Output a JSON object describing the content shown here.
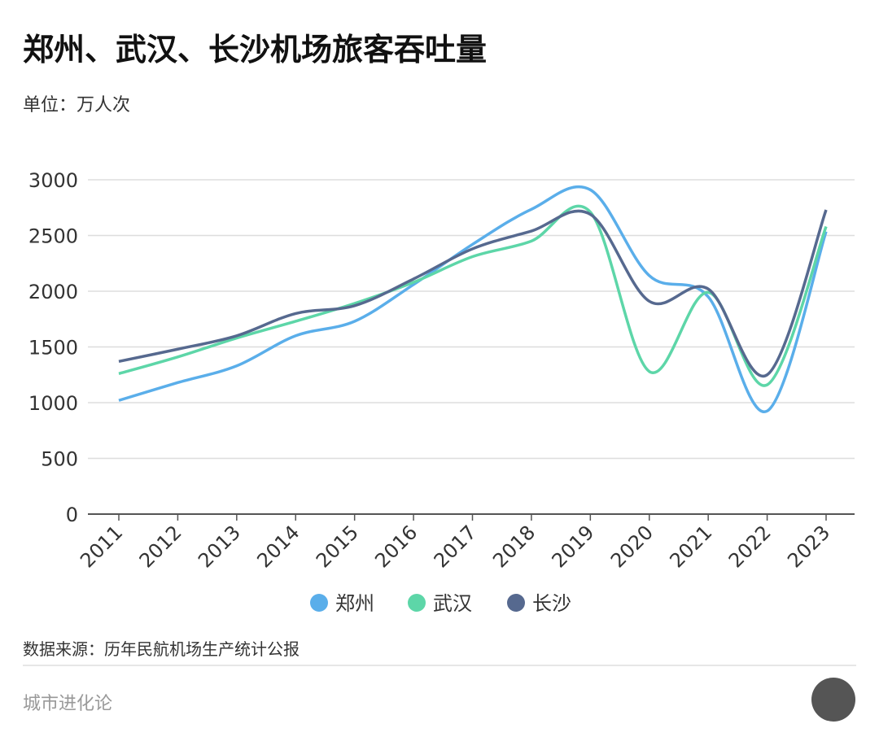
{
  "chart_data": {
    "type": "line",
    "title": "郑州、武汉、长沙机场旅客吞吐量",
    "subtitle": "单位：万人次",
    "source": "数据来源：历年民航机场生产统计公报",
    "footer": "城市进化论",
    "categories": [
      "2011",
      "2012",
      "2013",
      "2014",
      "2015",
      "2016",
      "2017",
      "2018",
      "2019",
      "2020",
      "2021",
      "2022",
      "2023"
    ],
    "series": [
      {
        "name": "郑州",
        "color": "#5aaeea",
        "values": [
          1020,
          1180,
          1330,
          1600,
          1730,
          2060,
          2420,
          2735,
          2910,
          2140,
          1950,
          925,
          2535
        ]
      },
      {
        "name": "武汉",
        "color": "#5dd6a8",
        "values": [
          1260,
          1410,
          1580,
          1730,
          1890,
          2080,
          2310,
          2450,
          2710,
          1280,
          1990,
          1160,
          2580
        ]
      },
      {
        "name": "长沙",
        "color": "#56698f",
        "values": [
          1370,
          1480,
          1600,
          1800,
          1870,
          2110,
          2380,
          2540,
          2690,
          1910,
          2020,
          1250,
          2730
        ]
      }
    ],
    "ylim": [
      0,
      3000
    ],
    "yticks": [
      0,
      500,
      1000,
      1500,
      2000,
      2500,
      3000
    ],
    "grid": true,
    "smooth": true
  }
}
